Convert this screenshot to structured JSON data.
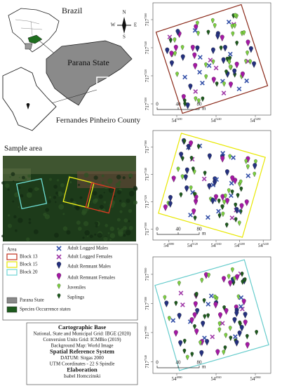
{
  "locator": {
    "country": "Brazil",
    "state": "Parana State",
    "county": "Fernandes Pinheiro County",
    "compass": [
      "N",
      "S",
      "W",
      "E"
    ]
  },
  "sample_area": {
    "title": "Sample area"
  },
  "legend": {
    "area_title": "Area",
    "blocks": [
      "Block 13",
      "Block 15",
      "Block 20"
    ],
    "state": "Parana State",
    "occurrence": "Species Occurrence states",
    "species": [
      "Adult Logged Males",
      "Adult Logged Females",
      "Adult Remnant Males",
      "Adult Remnant Females",
      "Juveniles",
      "Saplings"
    ]
  },
  "credits": [
    {
      "heading": "Cartographic Base",
      "lines": [
        "National, State and Municipal Grid: IBGE (2020)",
        "Conversion Units Grid: ICMBio (2019)",
        "Background Map: World Image"
      ]
    },
    {
      "heading": "Spatial Reference System",
      "lines": [
        "DATUM: Sirgas 2000",
        "UTM Coordinates - 22 S Spindle"
      ]
    },
    {
      "heading": "Elaboration",
      "lines": [
        "Isabel Homczinski"
      ]
    }
  ],
  "maps": [
    {
      "y_labels": [
        [
          "717",
          "7560"
        ],
        [
          "717",
          "7540"
        ],
        [
          "717",
          "7520"
        ],
        [
          "717",
          "7500"
        ]
      ],
      "x_labels": [
        [
          "54",
          "5200"
        ],
        [
          "54",
          "5240"
        ],
        [
          "54",
          "5280"
        ]
      ],
      "scale": [
        "0",
        "40",
        "80",
        "m"
      ]
    },
    {
      "y_labels": [
        [
          "717",
          "7360"
        ],
        [
          "717",
          "7340"
        ],
        [
          "717",
          "7320"
        ],
        [
          "717",
          "7300"
        ]
      ],
      "x_labels": [
        [
          "54",
          "5080"
        ],
        [
          "54",
          "5120"
        ],
        [
          "54",
          "5160"
        ],
        [
          "54",
          "5200"
        ],
        [
          "54",
          "5240"
        ]
      ],
      "scale": [
        "0",
        "40",
        "80",
        "m"
      ]
    },
    {
      "y_labels": [
        [
          "717",
          "7600"
        ],
        [
          "717",
          "7580"
        ],
        [
          "717",
          "7560"
        ],
        [
          "717",
          "7540"
        ]
      ],
      "x_labels": [
        [
          "54",
          "4880"
        ],
        [
          "54",
          "4920"
        ],
        [
          "54",
          "4960"
        ]
      ],
      "scale": [
        "0",
        "40",
        "80",
        "m"
      ]
    }
  ]
}
